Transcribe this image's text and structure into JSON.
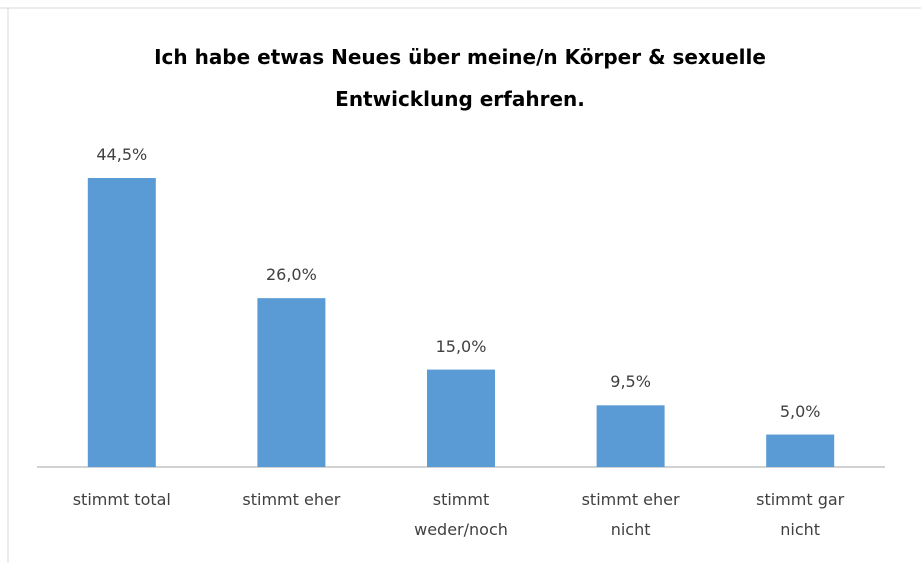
{
  "chart_data": {
    "type": "bar",
    "title": "Ich habe etwas Neues über meine/n Körper & sexuelle Entwicklung erfahren.",
    "categories": [
      "stimmt total",
      "stimmt eher",
      "stimmt weder/noch",
      "stimmt eher nicht",
      "stimmt gar nicht"
    ],
    "values": [
      44.5,
      26.0,
      15.0,
      9.5,
      5.0
    ],
    "value_labels": [
      "44,5%",
      "26,0%",
      "15,0%",
      "9,5%",
      "5,0%"
    ],
    "color": "#5b9bd5"
  }
}
